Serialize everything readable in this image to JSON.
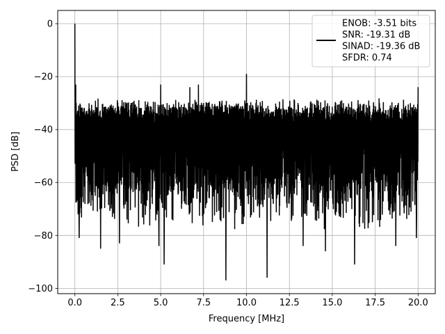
{
  "chart_data": {
    "type": "line",
    "title": "",
    "xlabel": "Frequency [MHz]",
    "ylabel": "PSD [dB]",
    "xlim": [
      -1.0,
      21.0
    ],
    "ylim": [
      -102,
      5
    ],
    "xticks": [
      0.0,
      2.5,
      5.0,
      7.5,
      10.0,
      12.5,
      15.0,
      17.5,
      20.0
    ],
    "xtick_labels": [
      "0.0",
      "2.5",
      "5.0",
      "7.5",
      "10.0",
      "12.5",
      "15.0",
      "17.5",
      "20.0"
    ],
    "yticks": [
      0,
      -20,
      -40,
      -60,
      -80,
      -100
    ],
    "ytick_labels": [
      "0",
      "−20",
      "−40",
      "−60",
      "−80",
      "−100"
    ],
    "grid": true,
    "legend_position": "top-right",
    "legend_entries": [
      "ENOB: -3.51 bits",
      "SNR: -19.31 dB",
      "SINAD: -19.36 dB",
      "SFDR: 0.74"
    ],
    "series": [
      {
        "color": "#000000",
        "noise_floor_top_db": -30,
        "noise_floor_bottom_db": -68,
        "x_range": [
          0.0,
          20.0
        ],
        "peaks": [
          {
            "x": 0.0,
            "y": 0.0
          },
          {
            "x": 0.05,
            "y": -23
          },
          {
            "x": 5.0,
            "y": -23
          },
          {
            "x": 6.7,
            "y": -24
          },
          {
            "x": 7.2,
            "y": -23
          },
          {
            "x": 10.0,
            "y": -19
          },
          {
            "x": 20.0,
            "y": -24
          }
        ],
        "dips": [
          {
            "x": 0.25,
            "y": -81
          },
          {
            "x": 1.5,
            "y": -85
          },
          {
            "x": 2.6,
            "y": -83
          },
          {
            "x": 4.9,
            "y": -84
          },
          {
            "x": 5.2,
            "y": -91
          },
          {
            "x": 8.8,
            "y": -97
          },
          {
            "x": 11.2,
            "y": -96
          },
          {
            "x": 13.3,
            "y": -84
          },
          {
            "x": 14.6,
            "y": -86
          },
          {
            "x": 16.3,
            "y": -91
          },
          {
            "x": 18.7,
            "y": -84
          },
          {
            "x": 19.9,
            "y": -81
          }
        ]
      }
    ]
  }
}
